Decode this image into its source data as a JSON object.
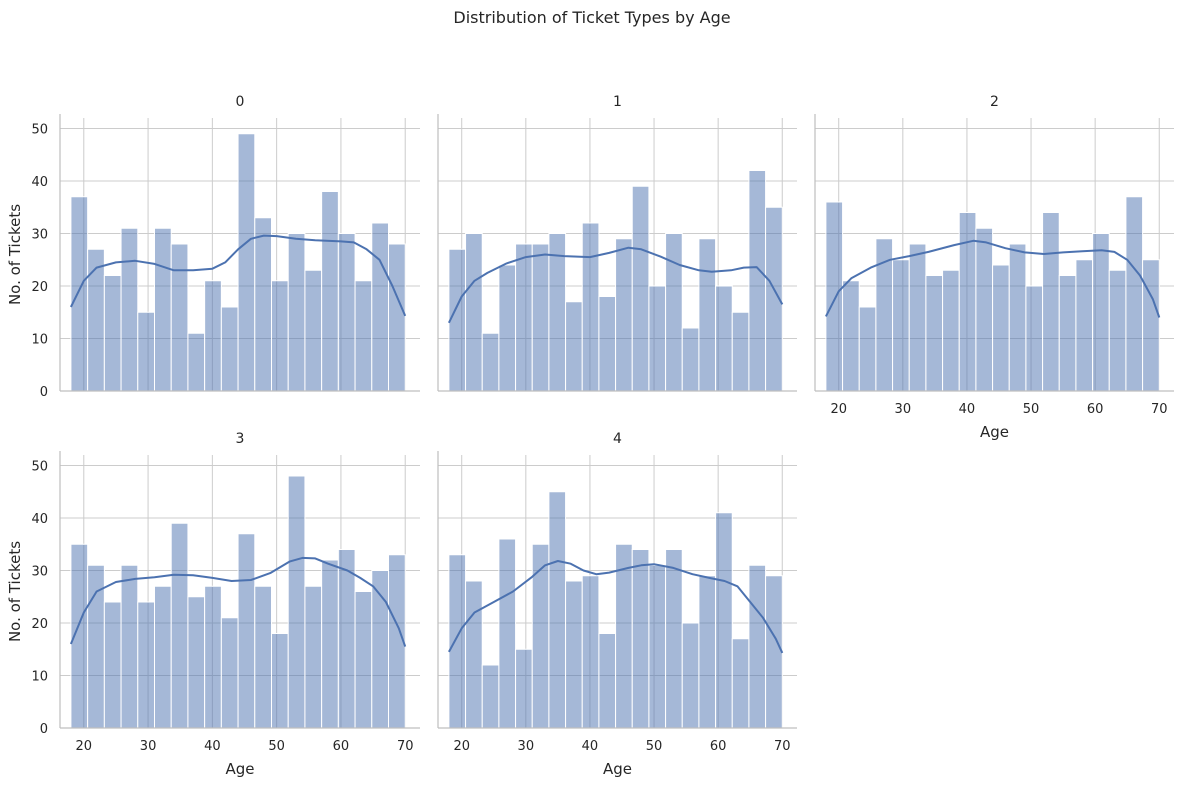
{
  "chart_data": {
    "type": "bar",
    "title": "Distribution of Ticket Types by Age",
    "xlabel": "Age",
    "ylabel": "No. of Tickets",
    "xlim": [
      16.3,
      72.3
    ],
    "ylim": [
      0,
      52
    ],
    "x_ticks": [
      20,
      30,
      40,
      50,
      60,
      70
    ],
    "y_ticks": [
      0,
      10,
      20,
      30,
      40,
      50
    ],
    "grid": true,
    "bins": {
      "start": 18,
      "width": 2.6,
      "count": 20
    },
    "bar_color": "#4c72b0",
    "kde_color": "#4c72b0",
    "panels": [
      {
        "title": "0",
        "values": [
          37,
          27,
          22,
          31,
          15,
          31,
          28,
          11,
          21,
          16,
          49,
          33,
          21,
          30,
          23,
          38,
          30,
          21,
          32,
          28
        ],
        "kde": [
          [
            18,
            16
          ],
          [
            20,
            21
          ],
          [
            22,
            23.5
          ],
          [
            25,
            24.5
          ],
          [
            28,
            24.8
          ],
          [
            31,
            24.2
          ],
          [
            34,
            23
          ],
          [
            37,
            23
          ],
          [
            40,
            23.3
          ],
          [
            42,
            24.5
          ],
          [
            44,
            27
          ],
          [
            46,
            29
          ],
          [
            48,
            29.6
          ],
          [
            50,
            29.5
          ],
          [
            53,
            29
          ],
          [
            56,
            28.7
          ],
          [
            60,
            28.5
          ],
          [
            62,
            28.3
          ],
          [
            64,
            27
          ],
          [
            66,
            25
          ],
          [
            68,
            20
          ],
          [
            70,
            14.3
          ]
        ]
      },
      {
        "title": "1",
        "values": [
          27,
          30,
          11,
          24,
          28,
          28,
          30,
          17,
          32,
          18,
          29,
          39,
          20,
          30,
          12,
          29,
          20,
          15,
          42,
          35
        ],
        "kde": [
          [
            18,
            13
          ],
          [
            20,
            18
          ],
          [
            22,
            21
          ],
          [
            24,
            22.5
          ],
          [
            27,
            24.3
          ],
          [
            30,
            25.5
          ],
          [
            33,
            26
          ],
          [
            36,
            25.7
          ],
          [
            40,
            25.5
          ],
          [
            43,
            26.3
          ],
          [
            46,
            27.3
          ],
          [
            48,
            27
          ],
          [
            51,
            25.6
          ],
          [
            54,
            24
          ],
          [
            57,
            23
          ],
          [
            59,
            22.7
          ],
          [
            62,
            23
          ],
          [
            64,
            23.5
          ],
          [
            66,
            23.6
          ],
          [
            68,
            21
          ],
          [
            70,
            16.5
          ]
        ]
      },
      {
        "title": "2",
        "values": [
          36,
          21,
          16,
          29,
          25,
          28,
          22,
          23,
          34,
          31,
          24,
          28,
          20,
          34,
          22,
          25,
          30,
          23,
          37,
          25
        ],
        "kde": [
          [
            18,
            14.2
          ],
          [
            20,
            19
          ],
          [
            22,
            21.5
          ],
          [
            25,
            23.5
          ],
          [
            28,
            25
          ],
          [
            31,
            25.7
          ],
          [
            34,
            26.5
          ],
          [
            38,
            27.8
          ],
          [
            41,
            28.6
          ],
          [
            43,
            28.3
          ],
          [
            46,
            27.2
          ],
          [
            49,
            26.4
          ],
          [
            52,
            26.1
          ],
          [
            55,
            26.4
          ],
          [
            58,
            26.6
          ],
          [
            61,
            26.8
          ],
          [
            63,
            26.5
          ],
          [
            65,
            25
          ],
          [
            67,
            22
          ],
          [
            69,
            17.5
          ],
          [
            70,
            14
          ]
        ]
      },
      {
        "title": "3",
        "values": [
          35,
          31,
          24,
          31,
          24,
          27,
          39,
          25,
          27,
          21,
          37,
          27,
          18,
          48,
          27,
          32,
          34,
          26,
          30,
          33
        ],
        "kde": [
          [
            18,
            16
          ],
          [
            20,
            22
          ],
          [
            22,
            26
          ],
          [
            25,
            27.8
          ],
          [
            28,
            28.4
          ],
          [
            31,
            28.7
          ],
          [
            34,
            29.2
          ],
          [
            37,
            29.1
          ],
          [
            40,
            28.6
          ],
          [
            43,
            28
          ],
          [
            46,
            28.2
          ],
          [
            49,
            29.5
          ],
          [
            52,
            31.7
          ],
          [
            54,
            32.4
          ],
          [
            56,
            32.3
          ],
          [
            58,
            31.3
          ],
          [
            61,
            30
          ],
          [
            63,
            28.6
          ],
          [
            65,
            27
          ],
          [
            67,
            24
          ],
          [
            69,
            19
          ],
          [
            70,
            15.5
          ]
        ]
      },
      {
        "title": "4",
        "values": [
          33,
          28,
          12,
          36,
          15,
          35,
          45,
          28,
          29,
          18,
          35,
          34,
          31,
          34,
          20,
          29,
          41,
          17,
          31,
          29
        ],
        "kde": [
          [
            18,
            14.5
          ],
          [
            20,
            19
          ],
          [
            22,
            22
          ],
          [
            25,
            24
          ],
          [
            28,
            26
          ],
          [
            31,
            28.8
          ],
          [
            33,
            31
          ],
          [
            35,
            31.8
          ],
          [
            37,
            31.3
          ],
          [
            39,
            30
          ],
          [
            41,
            29.3
          ],
          [
            43,
            29.6
          ],
          [
            46,
            30.5
          ],
          [
            48,
            31
          ],
          [
            50,
            31.2
          ],
          [
            53,
            30.5
          ],
          [
            56,
            29.3
          ],
          [
            59,
            28.5
          ],
          [
            61,
            28
          ],
          [
            63,
            27
          ],
          [
            65,
            24
          ],
          [
            67,
            21
          ],
          [
            69,
            17
          ],
          [
            70,
            14.3
          ]
        ]
      }
    ]
  }
}
